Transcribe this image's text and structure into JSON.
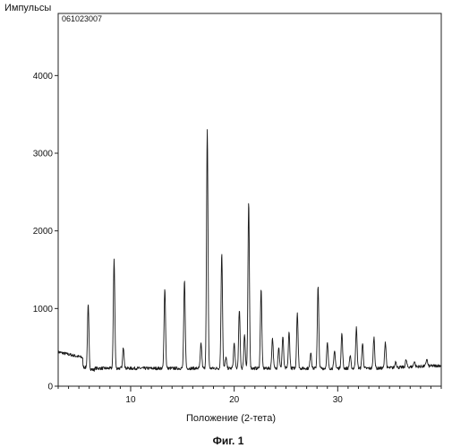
{
  "chart_data": {
    "type": "line",
    "title": "",
    "sample_id": "061023007",
    "ylabel": "Импульсы",
    "xlabel": "Положение (2-тета)",
    "caption": "Фиг. 1",
    "xlim": [
      3,
      40
    ],
    "ylim": [
      0,
      4800
    ],
    "xticks": [
      10,
      20,
      30
    ],
    "yticks": [
      0,
      1000,
      2000,
      3000,
      4000
    ],
    "x_minor_step": 1,
    "grid": false,
    "background": 250,
    "peaks": [
      {
        "x": 5.9,
        "y": 1050
      },
      {
        "x": 8.4,
        "y": 1650
      },
      {
        "x": 9.3,
        "y": 510
      },
      {
        "x": 13.3,
        "y": 1280
      },
      {
        "x": 15.2,
        "y": 1370
      },
      {
        "x": 16.8,
        "y": 560
      },
      {
        "x": 17.4,
        "y": 3300
      },
      {
        "x": 18.8,
        "y": 1730
      },
      {
        "x": 19.2,
        "y": 380
      },
      {
        "x": 20.0,
        "y": 560
      },
      {
        "x": 20.5,
        "y": 990
      },
      {
        "x": 21.0,
        "y": 680
      },
      {
        "x": 21.4,
        "y": 2370
      },
      {
        "x": 22.6,
        "y": 1260
      },
      {
        "x": 23.7,
        "y": 630
      },
      {
        "x": 24.3,
        "y": 510
      },
      {
        "x": 24.7,
        "y": 650
      },
      {
        "x": 25.3,
        "y": 700
      },
      {
        "x": 26.1,
        "y": 960
      },
      {
        "x": 27.4,
        "y": 450
      },
      {
        "x": 28.1,
        "y": 1290
      },
      {
        "x": 29.0,
        "y": 560
      },
      {
        "x": 29.7,
        "y": 460
      },
      {
        "x": 30.4,
        "y": 690
      },
      {
        "x": 31.2,
        "y": 400
      },
      {
        "x": 31.8,
        "y": 760
      },
      {
        "x": 32.4,
        "y": 560
      },
      {
        "x": 33.5,
        "y": 640
      },
      {
        "x": 34.6,
        "y": 580
      },
      {
        "x": 35.6,
        "y": 320
      },
      {
        "x": 36.6,
        "y": 330
      },
      {
        "x": 37.4,
        "y": 310
      },
      {
        "x": 38.6,
        "y": 330
      }
    ]
  }
}
